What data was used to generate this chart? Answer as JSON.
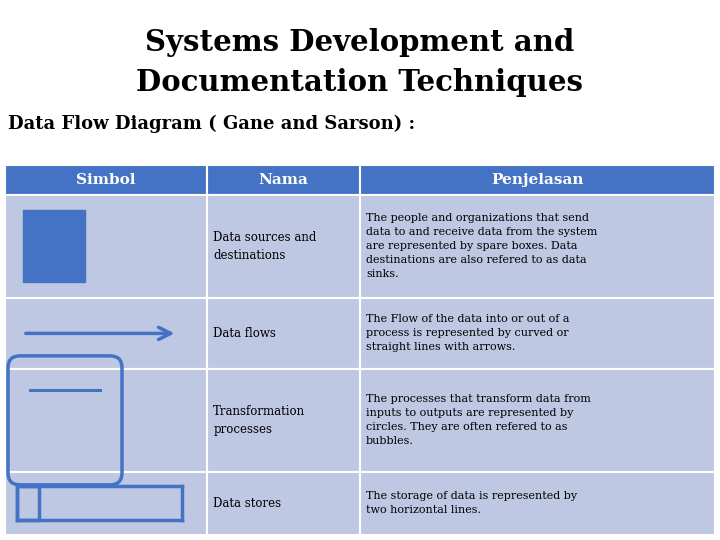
{
  "title_line1": "Systems Development and",
  "title_line2": "Documentation Techniques",
  "subtitle": "Data Flow Diagram ( Gane and Sarson) :",
  "header": [
    "Simbol",
    "Nama",
    "Penjelasan"
  ],
  "rows": [
    {
      "nama": "Data sources and\ndestinations",
      "penjelasan": "The people and organizations that send\ndata to and receive data from the system\nare represented by spare boxes. Data\ndestinations are also refered to as data\nsinks."
    },
    {
      "nama": "Data flows",
      "penjelasan": "The Flow of the data into or out of a\nprocess is represented by curved or\nstraight lines with arrows."
    },
    {
      "nama": "Transformation\nprocesses",
      "penjelasan": "The processes that transform data from\ninputs to outputs are represented by\ncircles. They are often refered to as\nbubbles."
    },
    {
      "nama": "Data stores",
      "penjelasan": "The storage of data is represented by\ntwo horizontal lines."
    }
  ],
  "header_bg": "#4472C4",
  "row_bg": "#BFC8E2",
  "symbol_color": "#4472C4",
  "header_text_color": "#FFFFFF",
  "cell_text_color": "#000000",
  "title_color": "#000000",
  "subtitle_color": "#000000",
  "fig_width": 7.2,
  "fig_height": 5.4,
  "dpi": 100
}
